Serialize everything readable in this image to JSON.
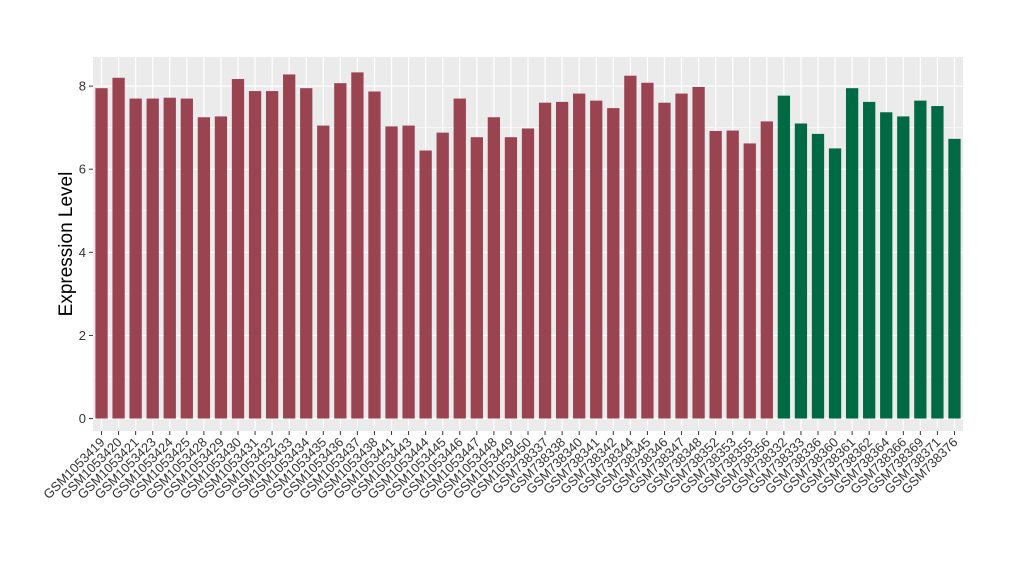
{
  "chart_data": {
    "type": "bar",
    "title": "",
    "xlabel": "",
    "ylabel": "Expression Level",
    "ylim": [
      -0.3,
      8.7
    ],
    "yticks": [
      0,
      2,
      4,
      6,
      8
    ],
    "grid": true,
    "legend": "none",
    "colors": {
      "group_a": "#9b4451",
      "group_b": "#006a44",
      "panel": "#ebebeb",
      "gridline": "#ffffff"
    },
    "categories": [
      "GSM1053419",
      "GSM1053420",
      "GSM1053421",
      "GSM1053423",
      "GSM1053424",
      "GSM1053425",
      "GSM1053428",
      "GSM1053429",
      "GSM1053430",
      "GSM1053431",
      "GSM1053432",
      "GSM1053433",
      "GSM1053434",
      "GSM1053435",
      "GSM1053436",
      "GSM1053437",
      "GSM1053438",
      "GSM1053441",
      "GSM1053443",
      "GSM1053444",
      "GSM1053445",
      "GSM1053446",
      "GSM1053447",
      "GSM1053448",
      "GSM1053449",
      "GSM1053450",
      "GSM738337",
      "GSM738338",
      "GSM738340",
      "GSM738341",
      "GSM738342",
      "GSM738344",
      "GSM738345",
      "GSM738346",
      "GSM738347",
      "GSM738348",
      "GSM738352",
      "GSM738353",
      "GSM738355",
      "GSM738356",
      "GSM738332",
      "GSM738333",
      "GSM738336",
      "GSM738360",
      "GSM738361",
      "GSM738362",
      "GSM738364",
      "GSM738366",
      "GSM738369",
      "GSM738371",
      "GSM738376"
    ],
    "values": [
      7.95,
      8.2,
      7.7,
      7.7,
      7.72,
      7.7,
      7.25,
      7.27,
      8.17,
      7.88,
      7.88,
      8.28,
      7.95,
      7.05,
      8.07,
      8.33,
      7.87,
      7.03,
      7.05,
      6.45,
      6.88,
      7.7,
      6.77,
      7.25,
      6.77,
      6.98,
      7.6,
      7.62,
      7.82,
      7.65,
      7.47,
      8.25,
      8.08,
      7.6,
      7.82,
      7.98,
      6.92,
      6.93,
      6.62,
      7.15,
      7.77,
      7.1,
      6.85,
      6.5,
      7.95,
      7.62,
      7.37,
      7.27,
      7.65,
      7.52,
      6.73
    ],
    "groups": [
      "a",
      "a",
      "a",
      "a",
      "a",
      "a",
      "a",
      "a",
      "a",
      "a",
      "a",
      "a",
      "a",
      "a",
      "a",
      "a",
      "a",
      "a",
      "a",
      "a",
      "a",
      "a",
      "a",
      "a",
      "a",
      "a",
      "a",
      "a",
      "a",
      "a",
      "a",
      "a",
      "a",
      "a",
      "a",
      "a",
      "a",
      "a",
      "a",
      "a",
      "b",
      "b",
      "b",
      "b",
      "b",
      "b",
      "b",
      "b",
      "b",
      "b",
      "b"
    ]
  }
}
